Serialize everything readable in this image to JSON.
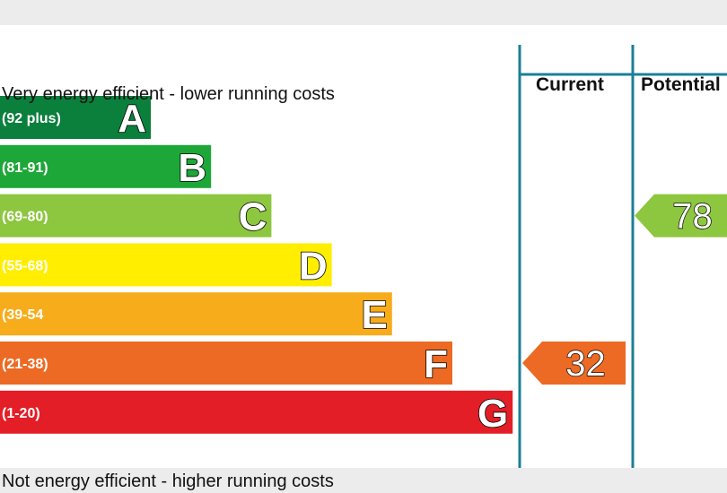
{
  "chart_data": {
    "type": "bar",
    "top_caption": "Very energy efficient - lower running costs",
    "bottom_caption": "Not energy efficient - higher running costs",
    "columns": {
      "current": "Current",
      "potential": "Potential"
    },
    "bands": [
      {
        "letter": "A",
        "range": "(92 plus)",
        "color": "#0b7f3c"
      },
      {
        "letter": "B",
        "range": "(81-91)",
        "color": "#1ea739"
      },
      {
        "letter": "C",
        "range": "(69-80)",
        "color": "#8dc63f"
      },
      {
        "letter": "D",
        "range": "(55-68)",
        "color": "#ffee00"
      },
      {
        "letter": "E",
        "range": "(39-54",
        "color": "#f7ac1b"
      },
      {
        "letter": "F",
        "range": "(21-38)",
        "color": "#ec6a23"
      },
      {
        "letter": "G",
        "range": "(1-20)",
        "color": "#e41e26"
      }
    ],
    "current": {
      "value": 32,
      "band": "F",
      "color": "#ec6a23"
    },
    "potential": {
      "value": 78,
      "band": "C",
      "color": "#8dc63f"
    },
    "divider_color": "#1a7f95"
  }
}
